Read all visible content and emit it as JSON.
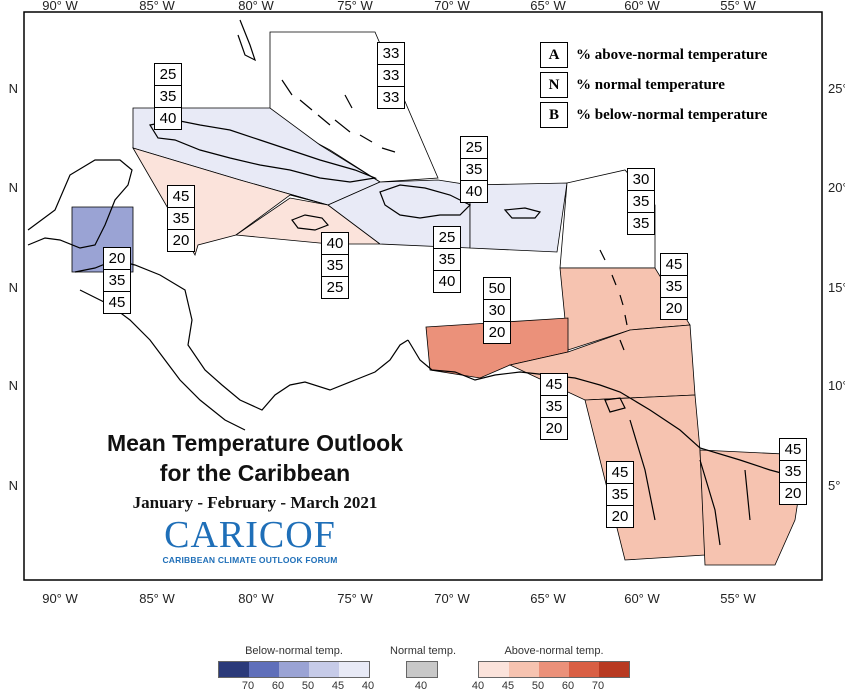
{
  "map": {
    "lon_ticks": [
      "90° W",
      "85° W",
      "80° W",
      "75° W",
      "70° W",
      "65° W",
      "60° W",
      "55° W"
    ],
    "lat_ticks_left": [
      "N",
      "N",
      "N",
      "N",
      "N"
    ],
    "lat_ticks_right": [
      "25°",
      "20°",
      "15°",
      "10°",
      "5°"
    ]
  },
  "title": {
    "line1": "Mean Temperature Outlook",
    "line2": "for the Caribbean",
    "period": "January - February - March 2021"
  },
  "logo": {
    "main": "CARICOF",
    "sub": "CARIBBEAN CLIMATE OUTLOOK FORUM"
  },
  "key": [
    {
      "letter": "A",
      "text": "% above-normal temperature"
    },
    {
      "letter": "N",
      "text": "% normal temperature"
    },
    {
      "letter": "B",
      "text": "% below-normal temperature"
    }
  ],
  "colorbars": {
    "below": {
      "title": "Below-normal temp.",
      "ticks": [
        "70",
        "60",
        "50",
        "45",
        "40"
      ],
      "colors": [
        "#2b3a7a",
        "#5f6fba",
        "#9aa3d4",
        "#c6cbe8",
        "#e8eaf6"
      ]
    },
    "normal": {
      "title": "Normal temp.",
      "ticks": [
        "40"
      ],
      "colors": [
        "#c8c8c8"
      ]
    },
    "above": {
      "title": "Above-normal temp.",
      "ticks": [
        "40",
        "45",
        "50",
        "60",
        "70"
      ],
      "colors": [
        "#fbe3db",
        "#f6c3b0",
        "#eb917a",
        "#d95f44",
        "#b83a22"
      ]
    }
  },
  "regions": [
    {
      "name": "bahamas-north",
      "A": "33",
      "N": "33",
      "B": "33",
      "color": "#ffffff"
    },
    {
      "name": "cuba-cayman",
      "A": "25",
      "N": "35",
      "B": "40",
      "color": "#e8eaf6"
    },
    {
      "name": "western-caribbean-sea",
      "A": "45",
      "N": "35",
      "B": "20",
      "color": "#fbe3db"
    },
    {
      "name": "jamaica",
      "A": "40",
      "N": "35",
      "B": "25",
      "color": "#fbe3db"
    },
    {
      "name": "belize",
      "A": "20",
      "N": "35",
      "B": "45",
      "color": "#9aa3d4"
    },
    {
      "name": "hispaniola-north",
      "A": "25",
      "N": "35",
      "B": "40",
      "color": "#e8eaf6"
    },
    {
      "name": "puerto-rico",
      "A": "25",
      "N": "35",
      "B": "40",
      "color": "#e8eaf6"
    },
    {
      "name": "northern-leewards",
      "A": "30",
      "N": "35",
      "B": "35",
      "color": "#ffffff"
    },
    {
      "name": "eastern-caribbean",
      "A": "45",
      "N": "35",
      "B": "20",
      "color": "#f6c3b0"
    },
    {
      "name": "abc-islands",
      "A": "50",
      "N": "30",
      "B": "20",
      "color": "#eb917a"
    },
    {
      "name": "trinidad-venezuela",
      "A": "45",
      "N": "35",
      "B": "20",
      "color": "#f6c3b0"
    },
    {
      "name": "guyana",
      "A": "45",
      "N": "35",
      "B": "20",
      "color": "#f6c3b0"
    },
    {
      "name": "suriname-french-guiana",
      "A": "45",
      "N": "35",
      "B": "20",
      "color": "#f6c3b0"
    }
  ]
}
